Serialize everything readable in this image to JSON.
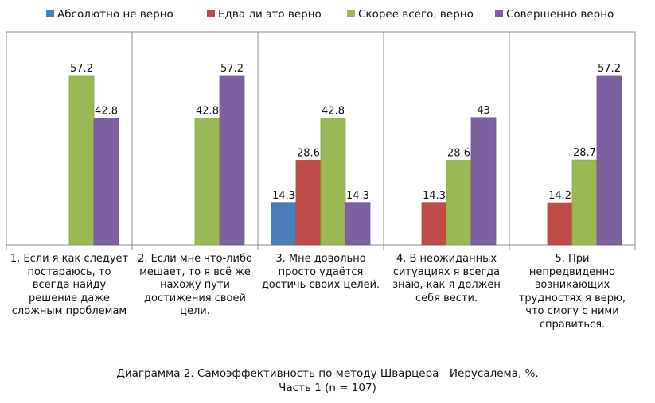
{
  "chart_data": {
    "type": "bar",
    "categories": [
      "1. Если я как следует постараюсь, то всегда найду решение даже сложным проблемам",
      "2. Если мне что-либо мешает, то я всё же нахожу пути достижения своей цели.",
      "3. Мне довольно просто удаётся достичь своих целей.",
      "4. В неожиданных ситуациях я всегда знаю, как я должен себя вести.",
      "5. При непредвиденно возникающих трудностях я верю, что смогу с ними справиться."
    ],
    "series": [
      {
        "name": "Абсолютно не верно",
        "color": "#4a7ebb",
        "values": [
          null,
          null,
          14.3,
          null,
          null
        ],
        "labels": [
          "",
          "",
          "14.3",
          "",
          ""
        ]
      },
      {
        "name": "Едва ли это верно",
        "color": "#be4b48",
        "values": [
          null,
          null,
          28.6,
          14.3,
          14.2
        ],
        "labels": [
          "",
          "",
          "28.6",
          "14.3",
          "14.2"
        ]
      },
      {
        "name": "Скорее всего, верно",
        "color": "#98b954",
        "values": [
          57.2,
          42.8,
          42.8,
          28.6,
          28.7
        ],
        "labels": [
          "57.2",
          "42.8",
          "42.8",
          "28.6",
          "28.7"
        ]
      },
      {
        "name": "Совершенно верно",
        "color": "#7d60a0",
        "values": [
          42.8,
          57.2,
          14.3,
          43,
          57.2
        ],
        "labels": [
          "42.8",
          "57.2",
          "14.3",
          "43",
          "57.2"
        ]
      }
    ],
    "ylim": [
      0,
      75
    ],
    "grid": false,
    "legend_position": "top",
    "title": "Диаграмма 2. Самоэффективность по методу Шварцера—Иерусалема, %.",
    "subtitle": "Часть 1 (n = 107)"
  }
}
